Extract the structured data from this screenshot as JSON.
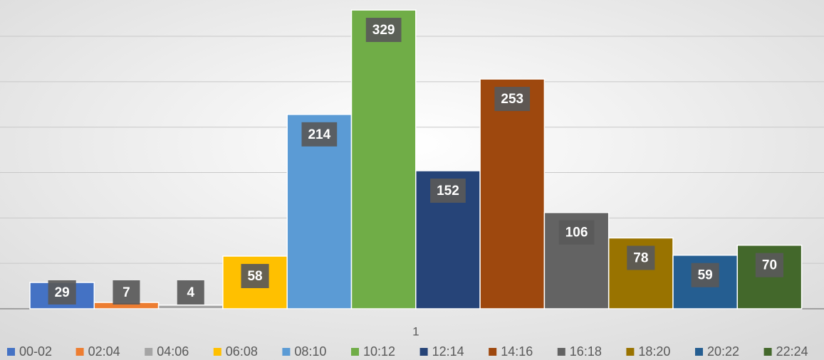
{
  "chart_data": {
    "type": "bar",
    "categories": [
      "1"
    ],
    "series": [
      {
        "name": "00-02",
        "color": "#4472c4",
        "values": [
          29
        ]
      },
      {
        "name": "02:04",
        "color": "#ed7d31",
        "values": [
          7
        ]
      },
      {
        "name": "04:06",
        "color": "#a5a5a5",
        "values": [
          4
        ]
      },
      {
        "name": "06:08",
        "color": "#ffc000",
        "values": [
          58
        ]
      },
      {
        "name": "08:10",
        "color": "#5b9bd5",
        "values": [
          214
        ]
      },
      {
        "name": "10:12",
        "color": "#70ad47",
        "values": [
          329
        ]
      },
      {
        "name": "12:14",
        "color": "#264478",
        "values": [
          152
        ]
      },
      {
        "name": "14:16",
        "color": "#9e480e",
        "values": [
          253
        ]
      },
      {
        "name": "16:18",
        "color": "#636363",
        "values": [
          106
        ]
      },
      {
        "name": "18:20",
        "color": "#997300",
        "values": [
          78
        ]
      },
      {
        "name": "20:22",
        "color": "#255e91",
        "values": [
          59
        ]
      },
      {
        "name": "22:24",
        "color": "#43682b",
        "values": [
          70
        ]
      }
    ],
    "ylim": [
      0,
      340
    ],
    "yticks": [
      0,
      50,
      100,
      150,
      200,
      250,
      300
    ],
    "grid": true,
    "legend": "bottom"
  }
}
